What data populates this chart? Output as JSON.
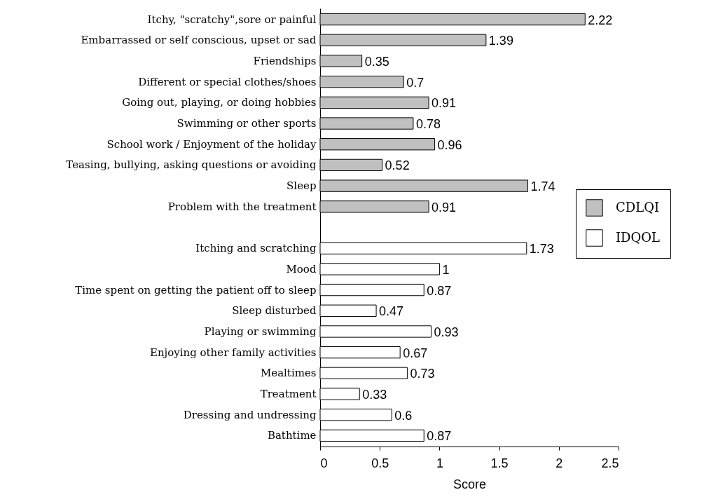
{
  "chart_data": {
    "type": "bar",
    "orientation": "horizontal",
    "xlabel": "Score",
    "categories": [
      "Itchy, \"scratchy\",sore or painful",
      "Embarrassed or self conscious, upset or sad",
      "Friendships",
      "Different or special clothes/shoes",
      "Going out, playing, or doing hobbies",
      "Swimming or other sports",
      "School work / Enjoyment of the holiday",
      "Teasing, bullying, asking questions or avoiding",
      "Sleep",
      "Problem with the treatment",
      null,
      "Itching and scratching",
      "Mood",
      "Time spent on getting the patient off to sleep",
      "Sleep  disturbed",
      "Playing or swimming",
      "Enjoying other family activities",
      "Mealtimes",
      "Treatment",
      "Dressing and undressing",
      "Bathtime"
    ],
    "series": [
      {
        "name": "CDLQI",
        "color": "#c0c0c0",
        "values": [
          2.22,
          1.39,
          0.35,
          0.7,
          0.91,
          0.78,
          0.96,
          0.52,
          1.74,
          0.91,
          null,
          null,
          null,
          null,
          null,
          null,
          null,
          null,
          null,
          null,
          null
        ]
      },
      {
        "name": "IDQOL",
        "color": "#ffffff",
        "values": [
          null,
          null,
          null,
          null,
          null,
          null,
          null,
          null,
          null,
          null,
          null,
          1.73,
          1,
          0.87,
          0.47,
          0.93,
          0.67,
          0.73,
          0.33,
          0.6,
          0.87
        ]
      }
    ],
    "xlim": [
      0,
      2.5
    ],
    "xticks": [
      0,
      0.5,
      1,
      1.5,
      2,
      2.5
    ],
    "data_labels": true,
    "legend": "right"
  }
}
